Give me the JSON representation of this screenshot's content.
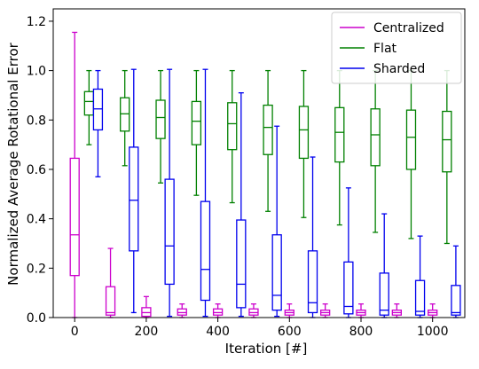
{
  "chart_data": {
    "type": "box",
    "title": "",
    "xlabel": "Iteration [#]",
    "ylabel": "Normalized Average Rotational Error",
    "xlim": [
      -60,
      1090
    ],
    "ylim": [
      0,
      1.25
    ],
    "x_ticks": [
      0,
      200,
      400,
      600,
      800,
      1000
    ],
    "y_ticks": [
      0.0,
      0.2,
      0.4,
      0.6,
      0.8,
      1.0,
      1.2
    ],
    "grid": false,
    "legend_position": "top-right",
    "iterations": [
      0,
      100,
      200,
      300,
      400,
      500,
      600,
      700,
      800,
      900,
      1000
    ],
    "series": [
      {
        "name": "Centralized",
        "color": "#cc00cc",
        "offset": 0,
        "boxes": [
          {
            "min": 0.0,
            "q1": 0.17,
            "median": 0.335,
            "q3": 0.645,
            "max": 1.155
          },
          {
            "min": 0.0,
            "q1": 0.01,
            "median": 0.02,
            "q3": 0.125,
            "max": 0.28
          },
          {
            "min": 0.0,
            "q1": 0.005,
            "median": 0.02,
            "q3": 0.04,
            "max": 0.085
          },
          {
            "min": 0.0,
            "q1": 0.01,
            "median": 0.02,
            "q3": 0.035,
            "max": 0.055
          },
          {
            "min": 0.0,
            "q1": 0.01,
            "median": 0.02,
            "q3": 0.035,
            "max": 0.055
          },
          {
            "min": 0.0,
            "q1": 0.01,
            "median": 0.02,
            "q3": 0.035,
            "max": 0.055
          },
          {
            "min": 0.0,
            "q1": 0.01,
            "median": 0.02,
            "q3": 0.03,
            "max": 0.055
          },
          {
            "min": 0.0,
            "q1": 0.01,
            "median": 0.02,
            "q3": 0.03,
            "max": 0.055
          },
          {
            "min": 0.0,
            "q1": 0.01,
            "median": 0.02,
            "q3": 0.03,
            "max": 0.055
          },
          {
            "min": 0.0,
            "q1": 0.01,
            "median": 0.02,
            "q3": 0.03,
            "max": 0.055
          },
          {
            "min": 0.0,
            "q1": 0.01,
            "median": 0.02,
            "q3": 0.03,
            "max": 0.055
          }
        ]
      },
      {
        "name": "Flat",
        "color": "#008000",
        "offset": 40,
        "boxes": [
          {
            "min": 0.7,
            "q1": 0.82,
            "median": 0.875,
            "q3": 0.915,
            "max": 1.0
          },
          {
            "min": 0.615,
            "q1": 0.755,
            "median": 0.825,
            "q3": 0.89,
            "max": 1.0
          },
          {
            "min": 0.545,
            "q1": 0.725,
            "median": 0.81,
            "q3": 0.88,
            "max": 1.0
          },
          {
            "min": 0.495,
            "q1": 0.7,
            "median": 0.795,
            "q3": 0.875,
            "max": 1.0
          },
          {
            "min": 0.465,
            "q1": 0.68,
            "median": 0.785,
            "q3": 0.87,
            "max": 1.0
          },
          {
            "min": 0.43,
            "q1": 0.66,
            "median": 0.77,
            "q3": 0.86,
            "max": 1.0
          },
          {
            "min": 0.405,
            "q1": 0.645,
            "median": 0.76,
            "q3": 0.855,
            "max": 1.0
          },
          {
            "min": 0.375,
            "q1": 0.63,
            "median": 0.75,
            "q3": 0.85,
            "max": 1.0
          },
          {
            "min": 0.345,
            "q1": 0.615,
            "median": 0.74,
            "q3": 0.845,
            "max": 1.0
          },
          {
            "min": 0.32,
            "q1": 0.6,
            "median": 0.73,
            "q3": 0.84,
            "max": 1.0
          },
          {
            "min": 0.3,
            "q1": 0.59,
            "median": 0.72,
            "q3": 0.835,
            "max": 1.0
          }
        ]
      },
      {
        "name": "Sharded",
        "color": "#0000ee",
        "offset": 65,
        "boxes": [
          {
            "min": 0.57,
            "q1": 0.76,
            "median": 0.845,
            "q3": 0.925,
            "max": 1.0
          },
          {
            "min": 0.02,
            "q1": 0.27,
            "median": 0.475,
            "q3": 0.69,
            "max": 1.005
          },
          {
            "min": 0.005,
            "q1": 0.135,
            "median": 0.29,
            "q3": 0.56,
            "max": 1.005
          },
          {
            "min": 0.005,
            "q1": 0.07,
            "median": 0.195,
            "q3": 0.47,
            "max": 1.005
          },
          {
            "min": 0.005,
            "q1": 0.04,
            "median": 0.135,
            "q3": 0.395,
            "max": 0.91
          },
          {
            "min": 0.005,
            "q1": 0.03,
            "median": 0.09,
            "q3": 0.335,
            "max": 0.775
          },
          {
            "min": 0.0,
            "q1": 0.02,
            "median": 0.06,
            "q3": 0.27,
            "max": 0.65
          },
          {
            "min": 0.0,
            "q1": 0.015,
            "median": 0.045,
            "q3": 0.225,
            "max": 0.525
          },
          {
            "min": 0.0,
            "q1": 0.01,
            "median": 0.03,
            "q3": 0.18,
            "max": 0.42
          },
          {
            "min": 0.0,
            "q1": 0.01,
            "median": 0.025,
            "q3": 0.15,
            "max": 0.33
          },
          {
            "min": 0.0,
            "q1": 0.01,
            "median": 0.02,
            "q3": 0.13,
            "max": 0.29
          }
        ]
      }
    ]
  }
}
